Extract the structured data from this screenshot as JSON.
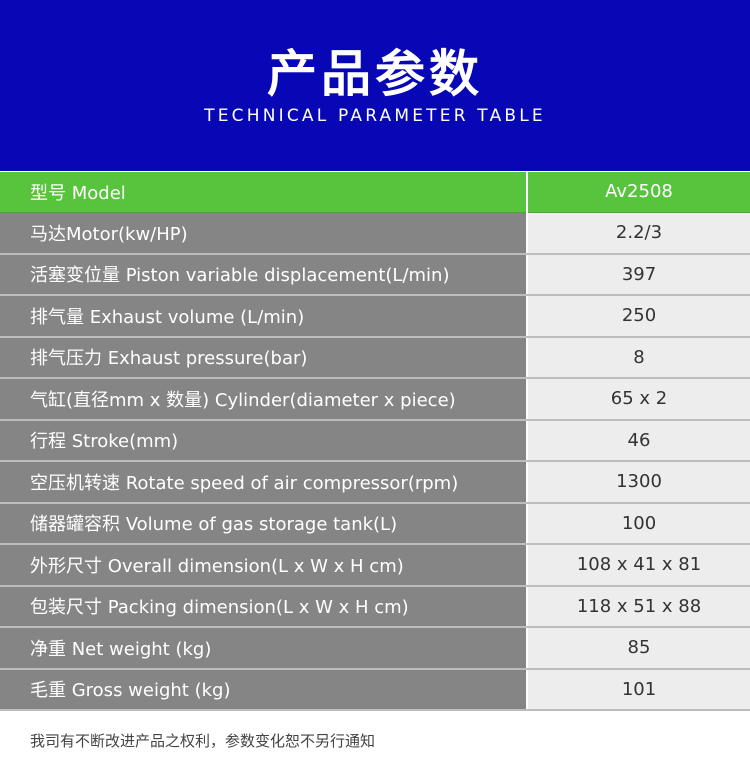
{
  "header": {
    "title": "产品参数",
    "subtitle": "TECHNICAL PARAMETER TABLE"
  },
  "colors": {
    "header_bg": "#0707b5",
    "model_row": "#58c43e",
    "label_bg": "#858585",
    "value_bg": "#ededed"
  },
  "table": {
    "head": {
      "label": "型号 Model",
      "value": "Av2508"
    },
    "rows": [
      {
        "label": "马达Motor(kw/HP)",
        "value": "2.2/3"
      },
      {
        "label": "活塞变位量 Piston variable displacement(L/min)",
        "value": "397"
      },
      {
        "label": "排气量 Exhaust volume (L/min)",
        "value": "250"
      },
      {
        "label": "排气压力 Exhaust pressure(bar)",
        "value": "8"
      },
      {
        "label": "气缸(直径mm x 数量) Cylinder(diameter x piece)",
        "value": "65 x 2"
      },
      {
        "label": "行程 Stroke(mm)",
        "value": "46"
      },
      {
        "label": "空压机转速 Rotate speed of air compressor(rpm)",
        "value": "1300"
      },
      {
        "label": "储器罐容积 Volume of gas storage tank(L)",
        "value": "100"
      },
      {
        "label": "外形尺寸 Overall dimension(L x W x H cm)",
        "value": "108 x 41 x 81"
      },
      {
        "label": "包装尺寸 Packing dimension(L x W x H cm)",
        "value": "118 x 51 x 88"
      },
      {
        "label": "净重 Net weight (kg)",
        "value": "85"
      },
      {
        "label": "毛重 Gross weight (kg)",
        "value": "101"
      }
    ]
  },
  "footer": {
    "note": "我司有不断改进产品之权利，参数变化恕不另行通知"
  }
}
